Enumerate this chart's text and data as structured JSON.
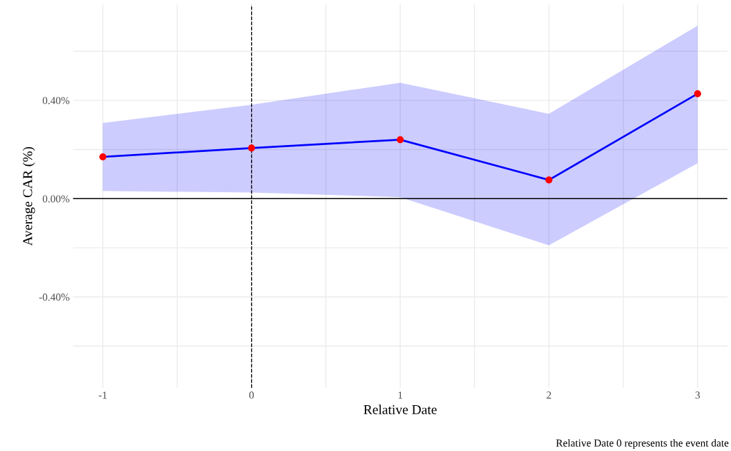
{
  "chart_data": {
    "type": "line",
    "xlabel": "Relative Date",
    "ylabel": "Average CAR (%)",
    "x": [
      -1,
      0,
      1,
      2,
      3
    ],
    "series": [
      {
        "color": "#0000ff",
        "values": [
          0.17,
          0.206,
          0.24,
          0.076,
          0.427
        ],
        "lower": [
          0.031,
          0.025,
          0.006,
          -0.19,
          0.144
        ],
        "upper": [
          0.308,
          0.382,
          0.472,
          0.345,
          0.704
        ],
        "marker": "none"
      },
      {
        "type": "scatter",
        "color": "#ff0000",
        "values": [
          0.17,
          0.206,
          0.24,
          0.076,
          0.427
        ],
        "marker": "circle"
      }
    ],
    "xlim": [
      -1.2,
      3.2
    ],
    "ylim": [
      -0.77,
      0.79
    ],
    "xticks": [
      -1,
      {
        "value": -0.5,
        "label": null
      },
      0,
      {
        "value": 0.5,
        "label": null
      },
      1,
      {
        "value": 1.5,
        "label": null
      },
      2,
      {
        "value": 2.5,
        "label": null
      },
      3
    ],
    "yticks": [
      {
        "value": -0.6,
        "label": null
      },
      {
        "value": -0.4,
        "label": "-0.40%"
      },
      {
        "value": -0.2,
        "label": null
      },
      {
        "value": 0,
        "label": "0.00%"
      },
      {
        "value": 0.2,
        "label": null
      },
      {
        "value": 0.4,
        "label": "0.40%"
      },
      {
        "value": 0.6,
        "label": null
      }
    ],
    "ref_lines": [
      {
        "axis": "y",
        "value": 0,
        "color": "#000000",
        "line_style": "solid"
      },
      {
        "axis": "x",
        "value": 0,
        "color": "#000000",
        "line_style": "dashed"
      }
    ],
    "grid": true,
    "annotations": [
      "Relative Date 0 represents the event date"
    ]
  }
}
